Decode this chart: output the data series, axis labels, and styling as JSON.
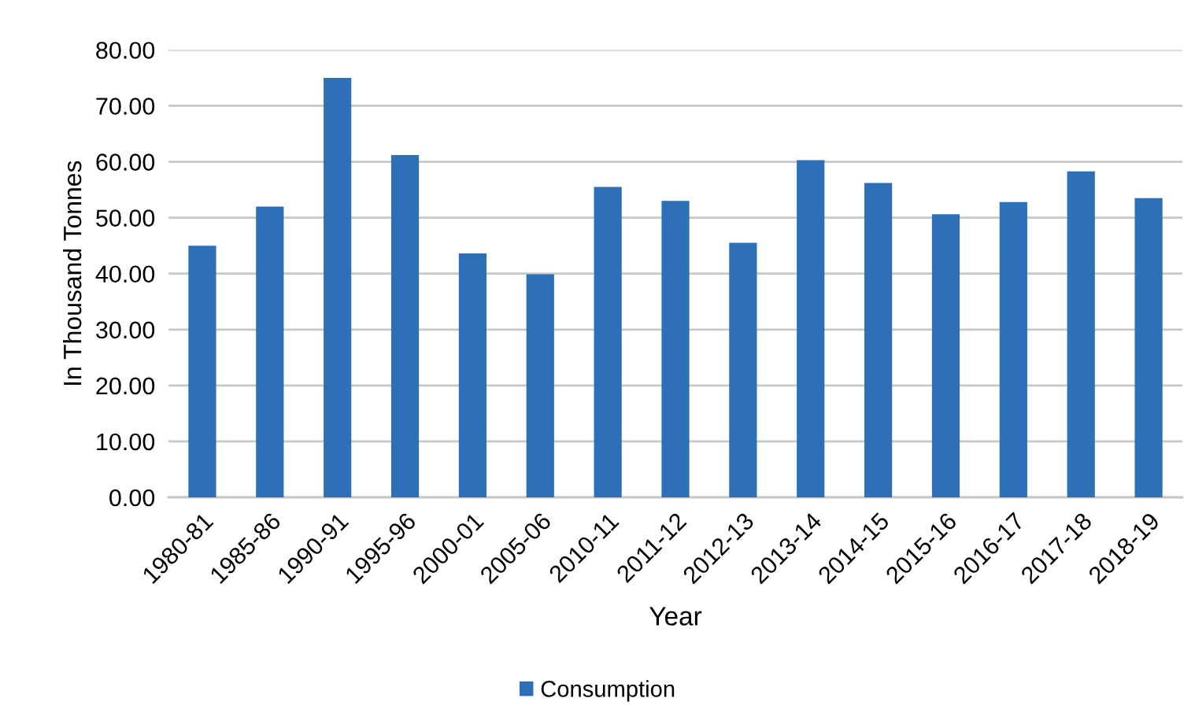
{
  "chart_data": {
    "type": "bar",
    "xlabel": "Year",
    "ylabel": "In Thousand Tonnes",
    "categories": [
      "1980-81",
      "1985-86",
      "1990-91",
      "1995-96",
      "2000-01",
      "2005-06",
      "2010-11",
      "2011-12",
      "2012-13",
      "2013-14",
      "2014-15",
      "2015-16",
      "2016-17",
      "2017-18",
      "2018-19"
    ],
    "series": [
      {
        "name": "Consumption",
        "color": "#2e70b8",
        "values": [
          45.0,
          52.0,
          75.0,
          61.2,
          43.6,
          39.9,
          55.5,
          53.0,
          45.5,
          60.3,
          56.2,
          50.6,
          52.8,
          58.3,
          53.5
        ]
      }
    ],
    "ylim": [
      0,
      80
    ],
    "yticks": [
      {
        "value": 0,
        "label": "0.00"
      },
      {
        "value": 10,
        "label": "10.00"
      },
      {
        "value": 20,
        "label": "20.00"
      },
      {
        "value": 30,
        "label": "30.00"
      },
      {
        "value": 40,
        "label": "40.00"
      },
      {
        "value": 50,
        "label": "50.00"
      },
      {
        "value": 60,
        "label": "60.00"
      },
      {
        "value": 70,
        "label": "70.00"
      },
      {
        "value": 80,
        "label": "80.00"
      }
    ],
    "grid": "y",
    "legend": "bottom"
  }
}
